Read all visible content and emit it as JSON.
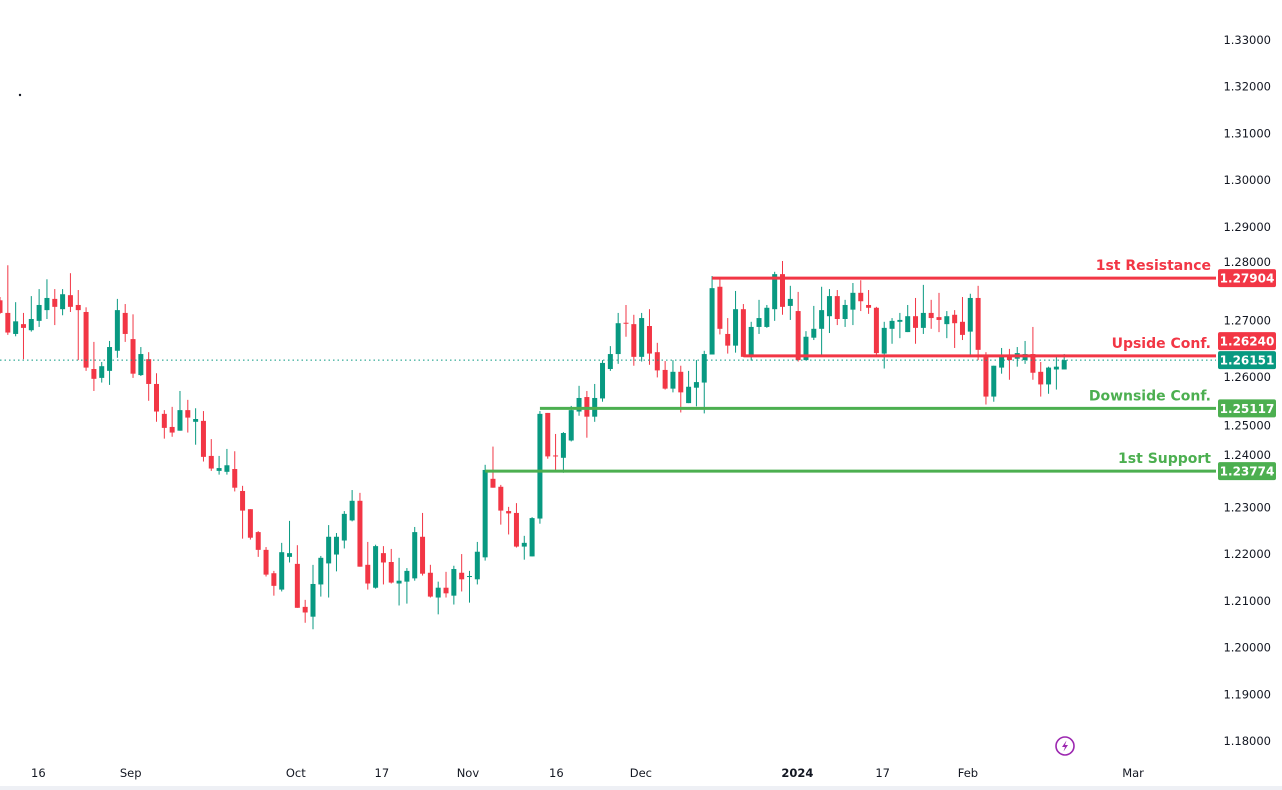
{
  "colors": {
    "up": "#089981",
    "down": "#F23645",
    "support": "#4CAF50",
    "resistance": "#F23645",
    "axis_text": "#131722",
    "last_price": "#089981",
    "lightning": "#9C27B0"
  },
  "chart_data": {
    "type": "candlestick",
    "title": "",
    "ylim": [
      1.18,
      1.33
    ],
    "y_ticks": [
      "1.33000",
      "1.32000",
      "1.31000",
      "1.30000",
      "1.29000",
      "1.28000",
      "1.27000",
      "1.26000",
      "1.25000",
      "1.24000",
      "1.23000",
      "1.22000",
      "1.21000",
      "1.20000",
      "1.19000",
      "1.18000"
    ],
    "x_ticks": [
      {
        "label": "16",
        "bar": 5.9
      },
      {
        "label": "Sep",
        "bar": 17.7
      },
      {
        "label": "Oct",
        "bar": 38.8
      },
      {
        "label": "17",
        "bar": 49.8
      },
      {
        "label": "Nov",
        "bar": 60.8
      },
      {
        "label": "16",
        "bar": 72.1
      },
      {
        "label": "Dec",
        "bar": 82.9
      },
      {
        "label": "2024",
        "bar": 102.9,
        "bold": true
      },
      {
        "label": "17",
        "bar": 113.8
      },
      {
        "label": "Feb",
        "bar": 124.7
      },
      {
        "label": "Mar",
        "bar": 145.8
      }
    ],
    "last_price": {
      "value": 1.26151,
      "label": "1.26151"
    },
    "levels": [
      {
        "name": "1st Resistance",
        "value": 1.27904,
        "label": "1.27904",
        "kind": "resistance",
        "from_bar": 92
      },
      {
        "name": "Upside Conf.",
        "value": 1.2624,
        "label": "1.26240",
        "kind": "resistance",
        "from_bar": 96
      },
      {
        "name": "Downside Conf.",
        "value": 1.25117,
        "label": "1.25117",
        "kind": "support",
        "from_bar": 70
      },
      {
        "name": "1st Support",
        "value": 1.23774,
        "label": "1.23774",
        "kind": "support",
        "from_bar": 63
      }
    ],
    "candles_ohlc": [
      [
        1.2743,
        1.275,
        1.2714,
        1.2716
      ],
      [
        1.2716,
        1.2818,
        1.2669,
        1.2674
      ],
      [
        1.2671,
        1.2739,
        1.2666,
        1.2698
      ],
      [
        1.2692,
        1.2716,
        1.2617,
        1.2684
      ],
      [
        1.2679,
        1.2752,
        1.2676,
        1.2703
      ],
      [
        1.2699,
        1.2767,
        1.2686,
        1.2733
      ],
      [
        1.2722,
        1.2788,
        1.2703,
        1.2748
      ],
      [
        1.2746,
        1.2767,
        1.269,
        1.2729
      ],
      [
        1.2724,
        1.2767,
        1.2711,
        1.2756
      ],
      [
        1.2754,
        1.2801,
        1.2718,
        1.2729
      ],
      [
        1.2733,
        1.2765,
        1.2615,
        1.2722
      ],
      [
        1.2718,
        1.2728,
        1.2592,
        1.2599
      ],
      [
        1.2596,
        1.2654,
        1.2549,
        1.2575
      ],
      [
        1.2577,
        1.2611,
        1.2567,
        1.2602
      ],
      [
        1.2592,
        1.2656,
        1.2562,
        1.2643
      ],
      [
        1.2635,
        1.2746,
        1.262,
        1.2722
      ],
      [
        1.2716,
        1.2735,
        1.2654,
        1.2671
      ],
      [
        1.266,
        1.2713,
        1.2577,
        1.2586
      ],
      [
        1.2583,
        1.2643,
        1.2581,
        1.2628
      ],
      [
        1.2617,
        1.2632,
        1.2528,
        1.2564
      ],
      [
        1.2564,
        1.2587,
        1.2483,
        1.2505
      ],
      [
        1.25,
        1.2508,
        1.2447,
        1.247
      ],
      [
        1.2472,
        1.2515,
        1.2451,
        1.246
      ],
      [
        1.2464,
        1.2549,
        1.2464,
        1.2508
      ],
      [
        1.2508,
        1.253,
        1.246,
        1.2492
      ],
      [
        1.2483,
        1.2512,
        1.2434,
        1.2489
      ],
      [
        1.2485,
        1.2506,
        1.2398,
        1.2408
      ],
      [
        1.241,
        1.2446,
        1.2378,
        1.2383
      ],
      [
        1.2378,
        1.241,
        1.237,
        1.2384
      ],
      [
        1.2376,
        1.2425,
        1.237,
        1.239
      ],
      [
        1.2382,
        1.242,
        1.2334,
        1.2342
      ],
      [
        1.2335,
        1.2346,
        1.2233,
        1.2293
      ],
      [
        1.2296,
        1.2296,
        1.2231,
        1.2235
      ],
      [
        1.2247,
        1.2249,
        1.2194,
        1.2209
      ],
      [
        1.2209,
        1.2215,
        1.2152,
        1.2156
      ],
      [
        1.2159,
        1.2164,
        1.2111,
        1.2132
      ],
      [
        1.2124,
        1.2224,
        1.212,
        1.2204
      ],
      [
        1.2194,
        1.2271,
        1.2182,
        1.2202
      ],
      [
        1.2179,
        1.2219,
        1.2085,
        1.2085
      ],
      [
        1.2087,
        1.2102,
        1.2053,
        1.2075
      ],
      [
        1.2066,
        1.2177,
        1.2039,
        1.2136
      ],
      [
        1.2135,
        1.2196,
        1.2109,
        1.2192
      ],
      [
        1.218,
        1.2262,
        1.2107,
        1.2237
      ],
      [
        1.2199,
        1.2245,
        1.2163,
        1.2237
      ],
      [
        1.2229,
        1.2292,
        1.2212,
        1.2286
      ],
      [
        1.2272,
        1.2337,
        1.227,
        1.2314
      ],
      [
        1.2314,
        1.2331,
        1.2173,
        1.2173
      ],
      [
        1.2177,
        1.2226,
        1.2124,
        1.2137
      ],
      [
        1.2128,
        1.222,
        1.2126,
        1.2217
      ],
      [
        1.2202,
        1.2217,
        1.2135,
        1.2182
      ],
      [
        1.2183,
        1.2211,
        1.2137,
        1.2139
      ],
      [
        1.2137,
        1.2192,
        1.209,
        1.2143
      ],
      [
        1.2141,
        1.217,
        1.2094,
        1.2164
      ],
      [
        1.2148,
        1.2258,
        1.2143,
        1.2247
      ],
      [
        1.2237,
        1.2288,
        1.2154,
        1.2158
      ],
      [
        1.216,
        1.2177,
        1.2107,
        1.2109
      ],
      [
        1.2107,
        1.2141,
        1.2071,
        1.2128
      ],
      [
        1.2128,
        1.2162,
        1.2107,
        1.2116
      ],
      [
        1.2111,
        1.2175,
        1.2092,
        1.2168
      ],
      [
        1.216,
        1.22,
        1.212,
        1.2146
      ],
      [
        1.2151,
        1.2164,
        1.2096,
        1.2153
      ],
      [
        1.2146,
        1.2226,
        1.2135,
        1.2205
      ],
      [
        1.2193,
        1.2391,
        1.2186,
        1.238
      ],
      [
        1.2361,
        1.243,
        1.2342,
        1.2342
      ],
      [
        1.2344,
        1.2348,
        1.2263,
        1.2293
      ],
      [
        1.2292,
        1.2301,
        1.2242,
        1.2287
      ],
      [
        1.2288,
        1.2309,
        1.2214,
        1.2216
      ],
      [
        1.2216,
        1.2239,
        1.2188,
        1.2224
      ],
      [
        1.2195,
        1.2279,
        1.2195,
        1.2277
      ],
      [
        1.2276,
        1.2506,
        1.2265,
        1.25
      ],
      [
        1.2502,
        1.2502,
        1.2404,
        1.2409
      ],
      [
        1.2411,
        1.2457,
        1.2376,
        1.2409
      ],
      [
        1.2406,
        1.2461,
        1.2374,
        1.2459
      ],
      [
        1.2443,
        1.2517,
        1.2441,
        1.2508
      ],
      [
        1.2505,
        1.256,
        1.2496,
        1.2534
      ],
      [
        1.2536,
        1.2549,
        1.2449,
        1.2494
      ],
      [
        1.2494,
        1.2564,
        1.2483,
        1.2534
      ],
      [
        1.2533,
        1.2615,
        1.2526,
        1.2609
      ],
      [
        1.2596,
        1.2645,
        1.2592,
        1.2628
      ],
      [
        1.2628,
        1.2716,
        1.2607,
        1.2694
      ],
      [
        1.2695,
        1.2733,
        1.2665,
        1.2693
      ],
      [
        1.2692,
        1.2712,
        1.2603,
        1.2622
      ],
      [
        1.2622,
        1.2716,
        1.2612,
        1.2705
      ],
      [
        1.2688,
        1.2724,
        1.2605,
        1.2629
      ],
      [
        1.2632,
        1.2652,
        1.2578,
        1.2593
      ],
      [
        1.2594,
        1.2613,
        1.2552,
        1.2554
      ],
      [
        1.2554,
        1.2615,
        1.2546,
        1.259
      ],
      [
        1.259,
        1.2603,
        1.2503,
        1.2546
      ],
      [
        1.2523,
        1.2592,
        1.2523,
        1.2558
      ],
      [
        1.2556,
        1.2615,
        1.2516,
        1.2568
      ],
      [
        1.2567,
        1.2635,
        1.2501,
        1.2628
      ],
      [
        1.2627,
        1.2795,
        1.2627,
        1.2769
      ],
      [
        1.2772,
        1.2789,
        1.267,
        1.2682
      ],
      [
        1.2671,
        1.2705,
        1.2629,
        1.2646
      ],
      [
        1.2646,
        1.2763,
        1.2631,
        1.2724
      ],
      [
        1.2724,
        1.2735,
        1.2622,
        1.2622
      ],
      [
        1.2625,
        1.2697,
        1.2614,
        1.2686
      ],
      [
        1.2686,
        1.2744,
        1.2671,
        1.2705
      ],
      [
        1.2686,
        1.2733,
        1.2684,
        1.2727
      ],
      [
        1.2724,
        1.2804,
        1.2699,
        1.2799
      ],
      [
        1.2799,
        1.2827,
        1.2712,
        1.2729
      ],
      [
        1.2731,
        1.2774,
        1.2701,
        1.2746
      ],
      [
        1.272,
        1.2761,
        1.2612,
        1.2615
      ],
      [
        1.2615,
        1.2677,
        1.2614,
        1.2665
      ],
      [
        1.2663,
        1.2731,
        1.2658,
        1.2682
      ],
      [
        1.2682,
        1.2772,
        1.2625,
        1.2722
      ],
      [
        1.2709,
        1.2767,
        1.2673,
        1.2752
      ],
      [
        1.2752,
        1.2765,
        1.269,
        1.2703
      ],
      [
        1.2703,
        1.2744,
        1.2686,
        1.2733
      ],
      [
        1.2723,
        1.278,
        1.269,
        1.2759
      ],
      [
        1.2759,
        1.2786,
        1.272,
        1.2741
      ],
      [
        1.2733,
        1.2765,
        1.2714,
        1.2727
      ],
      [
        1.2727,
        1.2729,
        1.2626,
        1.263
      ],
      [
        1.2629,
        1.2697,
        1.2597,
        1.2684
      ],
      [
        1.2682,
        1.2705,
        1.265,
        1.2699
      ],
      [
        1.2697,
        1.2716,
        1.2662,
        1.2701
      ],
      [
        1.2675,
        1.2733,
        1.2675,
        1.2709
      ],
      [
        1.2709,
        1.2748,
        1.265,
        1.2684
      ],
      [
        1.2684,
        1.2776,
        1.2671,
        1.2716
      ],
      [
        1.2716,
        1.2744,
        1.2682,
        1.2705
      ],
      [
        1.2707,
        1.2759,
        1.2675,
        1.2701
      ],
      [
        1.2692,
        1.272,
        1.2662,
        1.2709
      ],
      [
        1.2712,
        1.2722,
        1.2641,
        1.2694
      ],
      [
        1.2697,
        1.275,
        1.2658,
        1.2669
      ],
      [
        1.2676,
        1.2757,
        1.2626,
        1.2748
      ],
      [
        1.2748,
        1.2774,
        1.2615,
        1.2637
      ],
      [
        1.2622,
        1.2632,
        1.252,
        1.2537
      ],
      [
        1.2537,
        1.2603,
        1.2526,
        1.2603
      ],
      [
        1.2599,
        1.2641,
        1.2586,
        1.2626
      ],
      [
        1.2626,
        1.2639,
        1.2573,
        1.2615
      ],
      [
        1.2618,
        1.2643,
        1.2601,
        1.263
      ],
      [
        1.2615,
        1.2656,
        1.2607,
        1.2628
      ],
      [
        1.2628,
        1.2686,
        1.2573,
        1.2588
      ],
      [
        1.259,
        1.2611,
        1.2537,
        1.2563
      ],
      [
        1.2563,
        1.2601,
        1.2543,
        1.2599
      ],
      [
        1.2595,
        1.2624,
        1.2552,
        1.2601
      ],
      [
        1.2595,
        1.2628,
        1.2595,
        1.2615
      ]
    ]
  }
}
